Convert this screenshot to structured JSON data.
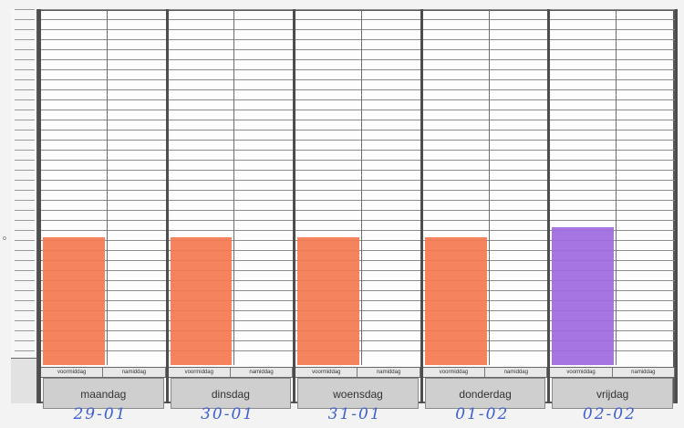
{
  "sheet": {
    "half_labels": {
      "morning": "voormiddag",
      "afternoon": "namiddag"
    },
    "side_mark": "o",
    "colors": {
      "orange_fill": "#f47a52",
      "purple_fill": "#a06ae0",
      "date_ink": "#3d5fd1",
      "grid_line": "#8d8d8d"
    },
    "scale_rows": 35,
    "days": [
      {
        "name": "maandag",
        "date": "29-01",
        "morning_fill_rows": 12,
        "afternoon_fill_rows": 0,
        "color": "orange"
      },
      {
        "name": "dinsdag",
        "date": "30-01",
        "morning_fill_rows": 12,
        "afternoon_fill_rows": 0,
        "color": "orange"
      },
      {
        "name": "woensdag",
        "date": "31-01",
        "morning_fill_rows": 12,
        "afternoon_fill_rows": 0,
        "color": "orange"
      },
      {
        "name": "donderdag",
        "date": "01-02",
        "morning_fill_rows": 12,
        "afternoon_fill_rows": 0,
        "color": "orange"
      },
      {
        "name": "vrijdag",
        "date": "02-02",
        "morning_fill_rows": 13,
        "afternoon_fill_rows": 0,
        "color": "purple"
      }
    ]
  }
}
